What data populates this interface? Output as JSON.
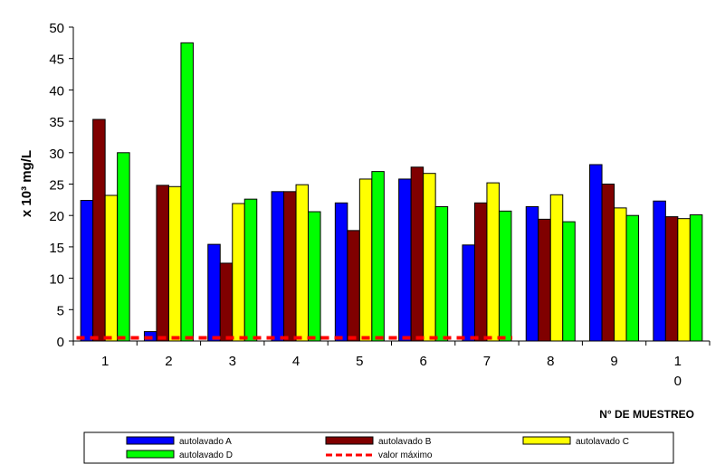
{
  "chart_data": {
    "type": "bar",
    "categories": [
      "1",
      "2",
      "3",
      "4",
      "5",
      "6",
      "7",
      "8",
      "9",
      "1\n0"
    ],
    "series": [
      {
        "name": "autolavado A",
        "color": "#0000ff",
        "values": [
          22.4,
          1.5,
          15.4,
          23.8,
          22.0,
          25.8,
          15.3,
          21.4,
          28.1,
          22.3
        ]
      },
      {
        "name": "autolavado B",
        "color": "#800000",
        "values": [
          35.3,
          24.8,
          12.4,
          23.8,
          17.6,
          27.7,
          22.0,
          19.4,
          25.0,
          19.8
        ]
      },
      {
        "name": "autolavado C",
        "color": "#ffff00",
        "values": [
          23.2,
          24.6,
          21.9,
          24.9,
          25.8,
          26.7,
          25.2,
          23.3,
          21.2,
          19.5
        ]
      },
      {
        "name": "autolavado D",
        "color": "#00ff00",
        "values": [
          30.0,
          47.5,
          22.6,
          20.6,
          27.0,
          21.4,
          20.7,
          19.0,
          20.0,
          20.1
        ]
      }
    ],
    "reference_line": {
      "name": "valor máximo",
      "color": "#ff0000",
      "value": 0.5,
      "style": "dashed",
      "span_categories": [
        1,
        7
      ]
    },
    "ylabel": "x 10³  mg/L",
    "xlabel": "N° DE MUESTREO",
    "ylim": [
      0,
      50
    ],
    "yticks": [
      0,
      5,
      10,
      15,
      20,
      25,
      30,
      35,
      40,
      45,
      50
    ],
    "grid": false,
    "legend_position": "bottom"
  }
}
